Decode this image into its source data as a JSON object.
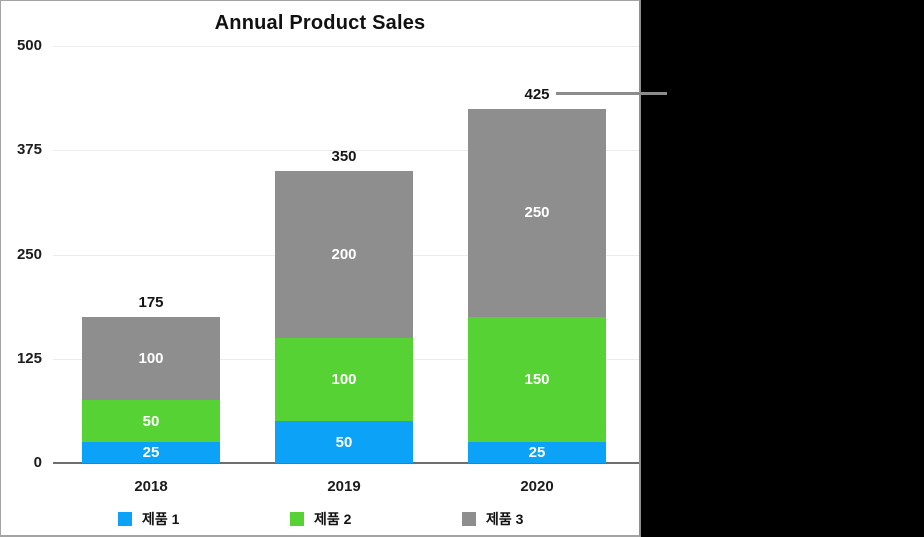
{
  "chart_data": {
    "type": "bar",
    "stacked": true,
    "title": "Annual Product Sales",
    "categories": [
      "2018",
      "2019",
      "2020"
    ],
    "series": [
      {
        "name": "제품 1",
        "color": "#0ba2f8",
        "values": [
          25,
          50,
          25
        ]
      },
      {
        "name": "제품 2",
        "color": "#57d234",
        "values": [
          50,
          100,
          150
        ]
      },
      {
        "name": "제품 3",
        "color": "#8e8e8e",
        "values": [
          100,
          200,
          250
        ]
      }
    ],
    "totals": [
      175,
      350,
      425
    ],
    "total_labels_position": "above-bar",
    "segment_labels_position": "inside-center",
    "xlabel": "",
    "ylabel": "",
    "ylim": [
      0,
      500
    ],
    "y_ticks": [
      0,
      125,
      250,
      375,
      500
    ],
    "grid": true,
    "legend_position": "bottom"
  },
  "callout": {
    "points_to_label": "425",
    "line_color": "#8c8c8c"
  },
  "colors": {
    "background": "#000000",
    "chart_background": "#ffffff",
    "gridline": "#ececec",
    "baseline": "#6f6f6f",
    "panel_border": "#a3a3a3"
  }
}
